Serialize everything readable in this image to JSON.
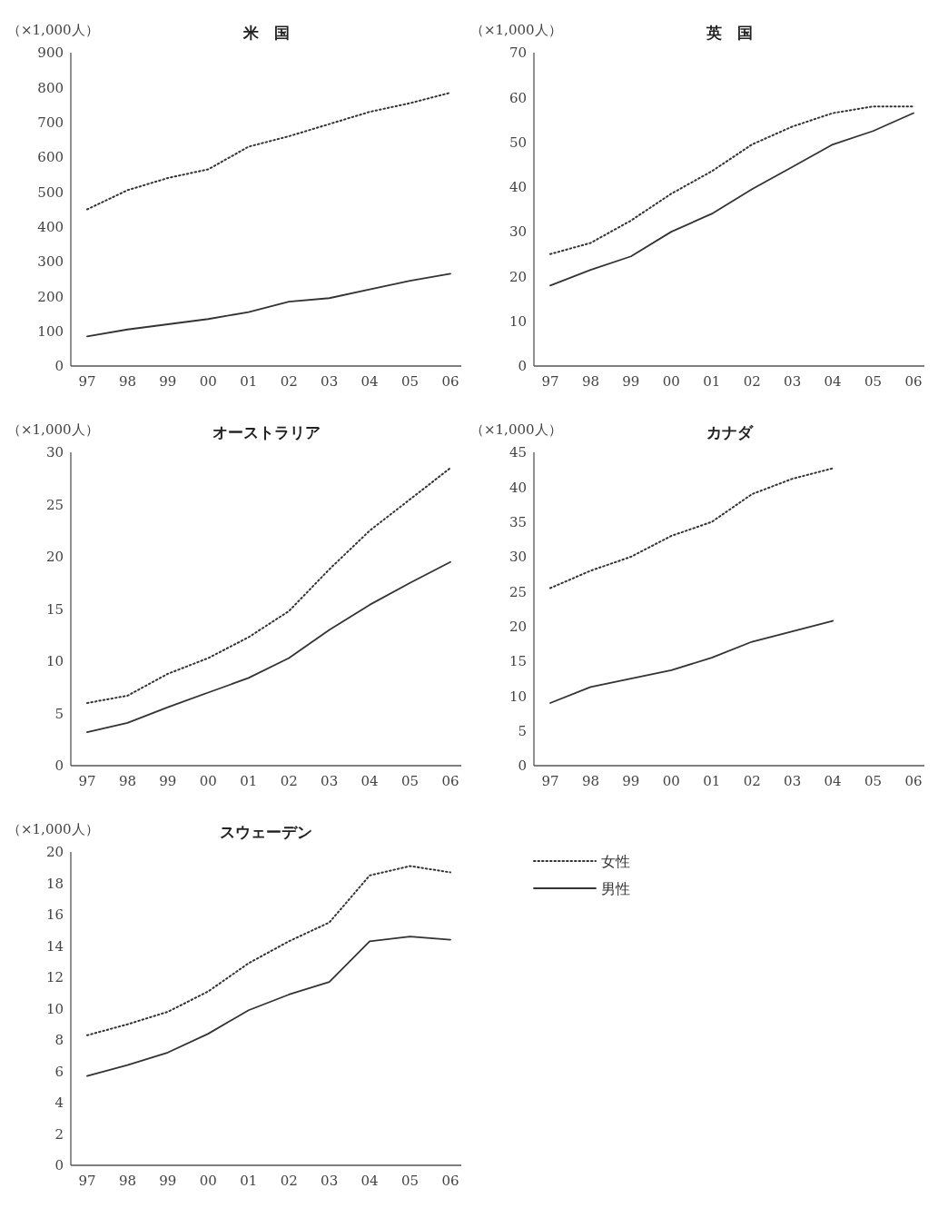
{
  "chart_data": [
    {
      "type": "line",
      "title": "米　国",
      "ylabel": "（×1,000人）",
      "categories": [
        "97",
        "98",
        "99",
        "00",
        "01",
        "02",
        "03",
        "04",
        "05",
        "06"
      ],
      "ylim": [
        0,
        900
      ],
      "yticks": [
        0,
        100,
        200,
        300,
        400,
        500,
        600,
        700,
        800,
        900
      ],
      "series": [
        {
          "color": "#333333",
          "line_style": "dotted",
          "values": [
            450,
            505,
            540,
            565,
            630,
            660,
            695,
            730,
            755,
            785
          ]
        },
        {
          "color": "#333333",
          "line_style": "solid",
          "values": [
            85,
            105,
            120,
            135,
            155,
            185,
            195,
            220,
            245,
            265
          ]
        }
      ]
    },
    {
      "type": "line",
      "title": "英　国",
      "ylabel": "（×1,000人）",
      "categories": [
        "97",
        "98",
        "99",
        "00",
        "01",
        "02",
        "03",
        "04",
        "05",
        "06"
      ],
      "ylim": [
        0,
        70
      ],
      "yticks": [
        0,
        10,
        20,
        30,
        40,
        50,
        60,
        70
      ],
      "series": [
        {
          "color": "#333333",
          "line_style": "dotted",
          "values": [
            25,
            27.5,
            32.5,
            38.5,
            43.5,
            49.5,
            53.5,
            56.5,
            58,
            58
          ]
        },
        {
          "color": "#333333",
          "line_style": "solid",
          "values": [
            18,
            21.5,
            24.5,
            30,
            34,
            39.5,
            44.5,
            49.5,
            52.5,
            56.5
          ]
        }
      ]
    },
    {
      "type": "line",
      "title": "オーストラリア",
      "ylabel": "（×1,000人）",
      "categories": [
        "97",
        "98",
        "99",
        "00",
        "01",
        "02",
        "03",
        "04",
        "05",
        "06"
      ],
      "ylim": [
        0,
        30
      ],
      "yticks": [
        0,
        5,
        10,
        15,
        20,
        25,
        30
      ],
      "series": [
        {
          "color": "#333333",
          "line_style": "dotted",
          "values": [
            6,
            6.7,
            8.8,
            10.3,
            12.3,
            14.8,
            18.8,
            22.5,
            25.5,
            28.5
          ]
        },
        {
          "color": "#333333",
          "line_style": "solid",
          "values": [
            3.2,
            4.1,
            5.6,
            7,
            8.4,
            10.3,
            13,
            15.4,
            17.5,
            19.5
          ]
        }
      ]
    },
    {
      "type": "line",
      "title": "カナダ",
      "ylabel": "（×1,000人）",
      "categories": [
        "97",
        "98",
        "99",
        "00",
        "01",
        "02",
        "03",
        "04",
        "05",
        "06"
      ],
      "ylim": [
        0,
        45
      ],
      "yticks": [
        0,
        5,
        10,
        15,
        20,
        25,
        30,
        35,
        40,
        45
      ],
      "series": [
        {
          "color": "#333333",
          "line_style": "dotted",
          "values": [
            25.5,
            28,
            30,
            33,
            35,
            39,
            41.2,
            42.7,
            null,
            null
          ]
        },
        {
          "color": "#333333",
          "line_style": "solid",
          "values": [
            9,
            11.3,
            12.5,
            13.7,
            15.5,
            17.8,
            19.3,
            20.8,
            null,
            null
          ]
        }
      ]
    },
    {
      "type": "line",
      "title": "スウェーデン",
      "ylabel": "（×1,000人）",
      "categories": [
        "97",
        "98",
        "99",
        "00",
        "01",
        "02",
        "03",
        "04",
        "05",
        "06"
      ],
      "ylim": [
        0,
        20
      ],
      "yticks": [
        0,
        2,
        4,
        6,
        8,
        10,
        12,
        14,
        16,
        18,
        20
      ],
      "legend": "right",
      "series": [
        {
          "name": "女性",
          "color": "#333333",
          "line_style": "dotted",
          "values": [
            8.3,
            9,
            9.8,
            11.1,
            12.9,
            14.3,
            15.5,
            18.5,
            19.1,
            18.7
          ]
        },
        {
          "name": "男性",
          "color": "#333333",
          "line_style": "solid",
          "values": [
            5.7,
            6.4,
            7.2,
            8.4,
            9.9,
            10.9,
            11.7,
            14.3,
            14.6,
            14.4
          ]
        }
      ]
    }
  ]
}
